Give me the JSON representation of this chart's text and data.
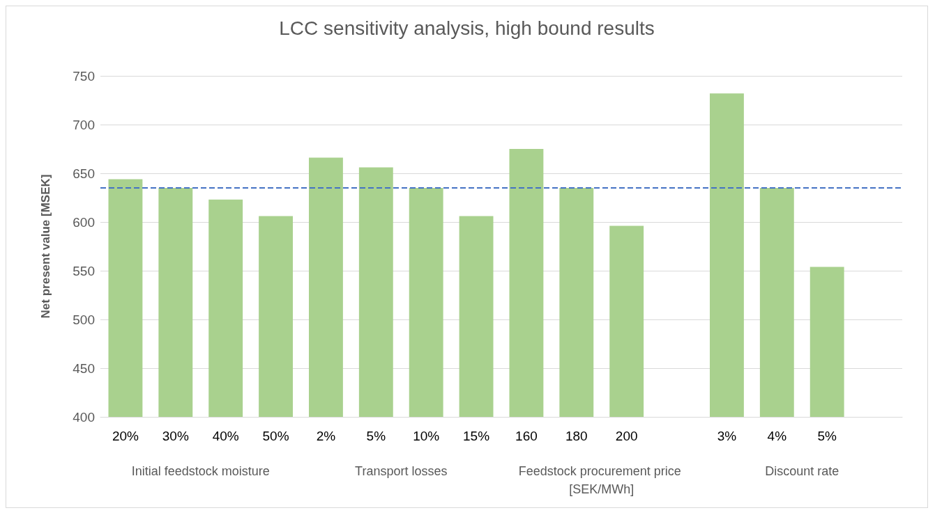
{
  "chart_data": {
    "type": "bar",
    "title": "LCC sensitivity analysis, high bound results",
    "ylabel": "Net present value [MSEK]",
    "categories": [
      "20%",
      "30%",
      "40%",
      "50%",
      "2%",
      "5%",
      "10%",
      "15%",
      "160",
      "180",
      "200",
      null,
      "3%",
      "4%",
      "5%",
      null
    ],
    "values": [
      644,
      635,
      623,
      606,
      666,
      656,
      635,
      606,
      675,
      635,
      596,
      null,
      732,
      635,
      554,
      null
    ],
    "color": "#a9d18e",
    "ylim": [
      400,
      750
    ],
    "yticks": [
      400,
      450,
      500,
      550,
      600,
      650,
      700,
      750
    ],
    "grid": "y",
    "ref_lines": [
      {
        "axis": "y",
        "value": 635,
        "color": "#4472c4",
        "line_style": "dashed"
      }
    ],
    "annotations": [
      "Initial feedstock moisture",
      "Transport losses",
      "Feedstock procurement price [SEK/MWh]",
      "Discount rate"
    ]
  }
}
